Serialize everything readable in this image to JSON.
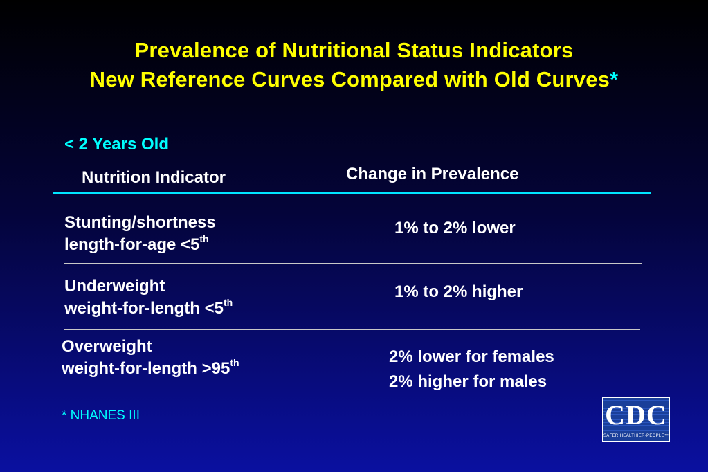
{
  "title": {
    "line1": "Prevalence of Nutritional Status Indicators",
    "line2": "New Reference Curves Compared with Old Curves",
    "asterisk": "*"
  },
  "subheading": "< 2 Years Old",
  "table": {
    "headers": {
      "indicator": "Nutrition Indicator",
      "change": "Change in Prevalence"
    },
    "rows": [
      {
        "indicator_line1": "Stunting/shortness",
        "indicator_line2": "length-for-age <5",
        "indicator_sup": "th",
        "change_line1": "1% to 2% lower",
        "change_line2": ""
      },
      {
        "indicator_line1": "Underweight",
        "indicator_line2": "weight-for-length <5",
        "indicator_sup": "th",
        "change_line1": "1% to 2% higher",
        "change_line2": ""
      },
      {
        "indicator_line1": "Overweight",
        "indicator_line2": "weight-for-length >95",
        "indicator_sup": "th",
        "change_line1": "2% lower for females",
        "change_line2": "2% higher for males"
      }
    ]
  },
  "footnote": "* NHANES III",
  "logo": {
    "text": "CDC",
    "tagline": "SAFER·HEALTHIER·PEOPLE™"
  },
  "colors": {
    "title": "#ffff00",
    "accent": "#00ffff",
    "rule": "#00e5ff",
    "text": "#ffffff",
    "background_top": "#000000",
    "background_bottom": "#0a10a0"
  }
}
